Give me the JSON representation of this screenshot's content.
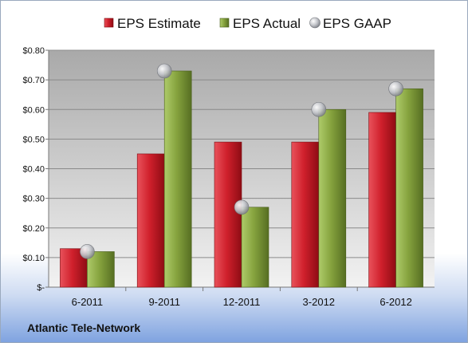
{
  "chart_data": {
    "type": "bar",
    "categories": [
      "6-2011",
      "9-2011",
      "12-2011",
      "3-2012",
      "6-2012"
    ],
    "series": [
      {
        "name": "EPS Estimate",
        "kind": "bar",
        "color": "#cc1f2b",
        "values": [
          0.13,
          0.45,
          0.49,
          0.49,
          0.59
        ]
      },
      {
        "name": "EPS Actual",
        "kind": "bar",
        "color": "#7f9c3a",
        "values": [
          0.12,
          0.73,
          0.27,
          0.6,
          0.67
        ]
      },
      {
        "name": "EPS GAAP",
        "kind": "marker",
        "color": "#b7b9be",
        "values": [
          0.12,
          0.73,
          0.27,
          0.6,
          0.67
        ]
      }
    ],
    "y_ticks": [
      "$-",
      "$0.10",
      "$0.20",
      "$0.30",
      "$0.40",
      "$0.50",
      "$0.60",
      "$0.70",
      "$0.80"
    ],
    "ylim": [
      0,
      0.8
    ],
    "grid": true,
    "legend_position": "top",
    "plot_background": "#cfcfcf"
  },
  "footer": {
    "company": "Atlantic Tele-Network"
  }
}
